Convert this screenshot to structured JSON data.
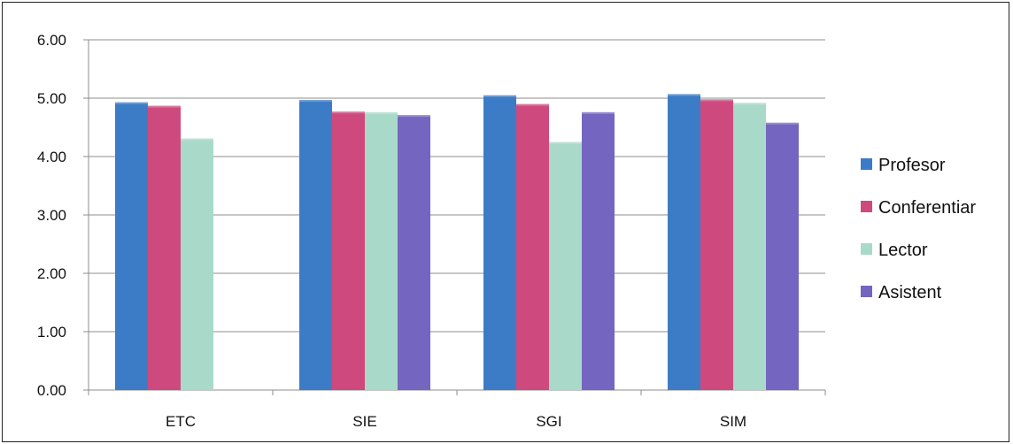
{
  "chart_data": {
    "type": "bar",
    "title": "",
    "xlabel": "",
    "ylabel": "",
    "categories": [
      "ETC",
      "SIE",
      "SGI",
      "SIM"
    ],
    "series": [
      {
        "name": "Profesor",
        "color": "#3C7CC6",
        "values": [
          4.93,
          4.97,
          5.05,
          5.07
        ]
      },
      {
        "name": "Conferentiar",
        "color": "#CE4A7E",
        "values": [
          4.87,
          4.77,
          4.9,
          4.98
        ]
      },
      {
        "name": "Lector",
        "color": "#A9D9C9",
        "values": [
          4.31,
          4.76,
          4.25,
          4.92
        ]
      },
      {
        "name": "Asistent",
        "color": "#7465C0",
        "values": [
          null,
          4.71,
          4.76,
          4.58
        ]
      }
    ],
    "ylim": [
      0,
      6
    ],
    "yticks": [
      "0.00",
      "1.00",
      "2.00",
      "3.00",
      "4.00",
      "5.00",
      "6.00"
    ],
    "grid": true,
    "legend_position": "right"
  }
}
